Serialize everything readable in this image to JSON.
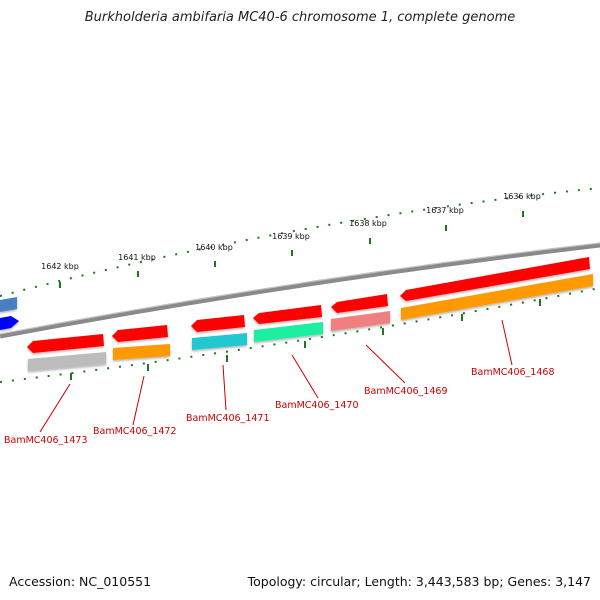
{
  "title": "Burkholderia ambifaria MC40-6 chromosome 1, complete genome",
  "scale_labels": [
    "1642 kbp",
    "1641 kbp",
    "1640 kbp",
    "1639 kbp",
    "1638 kbp",
    "1637 kbp",
    "1636 kbp"
  ],
  "genes": [
    {
      "name": "BamMC406_1473",
      "feature_color": "#bcbcbc"
    },
    {
      "name": "BamMC406_1472",
      "feature_color": "#ff9900"
    },
    {
      "name": "BamMC406_1471",
      "feature_color": "#22c8d0"
    },
    {
      "name": "BamMC406_1470",
      "feature_color": "#1cf0a0"
    },
    {
      "name": "BamMC406_1469",
      "feature_color": "#f08080"
    },
    {
      "name": "BamMC406_1468",
      "feature_color": "#ff9900"
    }
  ],
  "colors": {
    "cds": "#ff0000",
    "backbone": "#8a8a8a",
    "tick": "#1a7a1a",
    "label": "#cc0000",
    "left_feature_blue": "#4a7fc0",
    "left_feature_dark_blue": "#0000ff"
  },
  "footer": {
    "accession": "Accession: NC_010551",
    "summary": "Topology: circular; Length: 3,443,583 bp; Genes: 3,147"
  }
}
